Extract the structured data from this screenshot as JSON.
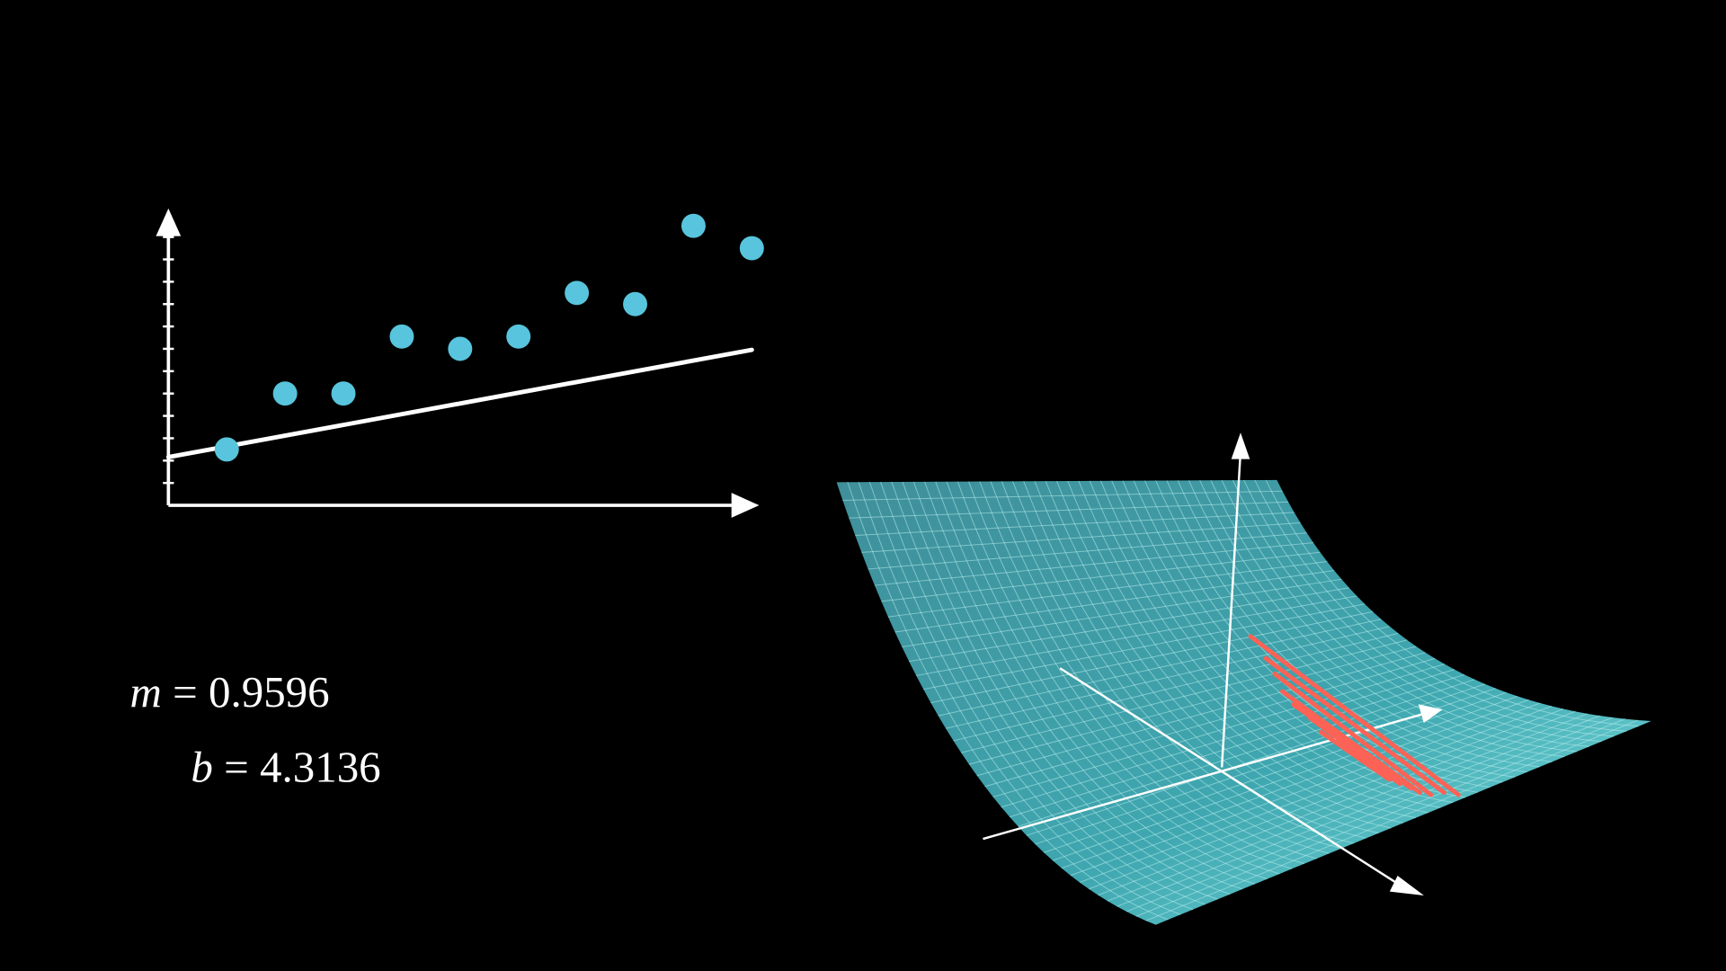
{
  "chart_data": {
    "type": "scatter",
    "x": [
      1,
      2,
      3,
      4,
      5,
      6,
      7,
      8,
      9,
      10
    ],
    "values": [
      5,
      10,
      10,
      15.1,
      14,
      15.1,
      19,
      18,
      25,
      23
    ],
    "color": "#58c4dd",
    "xlim": [
      0,
      10
    ],
    "ylim": [
      0,
      26
    ],
    "yticks": [
      2,
      4,
      6,
      8,
      10,
      12,
      14,
      16,
      18,
      20,
      22,
      24
    ],
    "line_color": "#ffffff",
    "fit": {
      "slope_symbol": "m",
      "slope": 0.9596,
      "intercept_symbol": "b",
      "intercept": 4.3136,
      "relation": "="
    }
  }
}
